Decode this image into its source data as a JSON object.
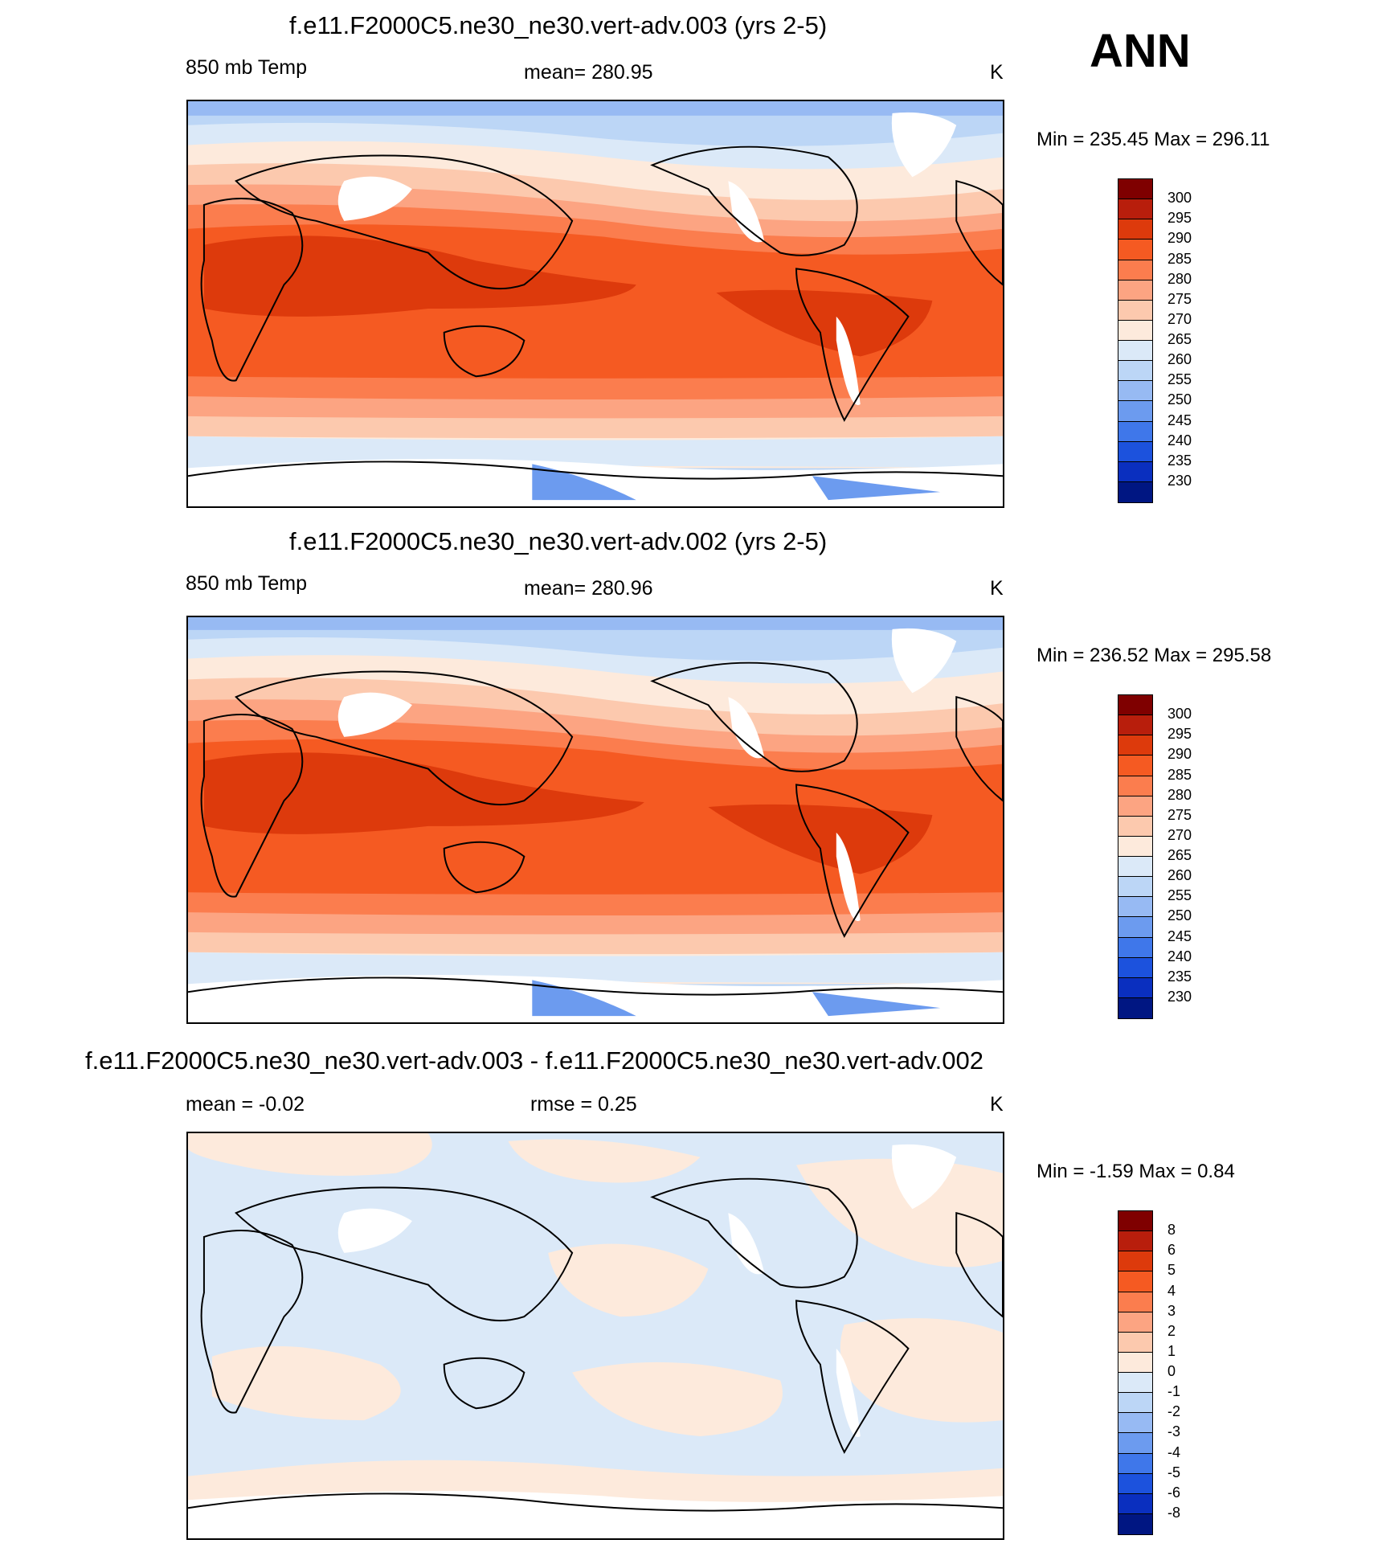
{
  "season": "ANN",
  "panels": [
    {
      "title": "f.e11.F2000C5.ne30_ne30.vert-adv.003 (yrs 2-5)",
      "left_label": "850 mb Temp",
      "center_label": "mean= 280.95",
      "units": "K",
      "minmax": "Min = 235.45 Max = 296.11",
      "colorbar": {
        "labels": [
          "300",
          "295",
          "290",
          "285",
          "280",
          "275",
          "270",
          "265",
          "260",
          "255",
          "250",
          "245",
          "240",
          "235",
          "230"
        ],
        "colors": [
          "#7f0000",
          "#b81e0c",
          "#dd3a0c",
          "#f55a22",
          "#fb7d4e",
          "#fca482",
          "#fcc9ae",
          "#fdeadc",
          "#dbe9f8",
          "#bcd6f6",
          "#97baf3",
          "#6c9bef",
          "#3f77ea",
          "#1c52dd",
          "#0a2fbf",
          "#001682"
        ]
      }
    },
    {
      "title": "f.e11.F2000C5.ne30_ne30.vert-adv.002 (yrs 2-5)",
      "left_label": "850 mb Temp",
      "center_label": "mean= 280.96",
      "units": "K",
      "minmax": "Min = 236.52 Max = 295.58",
      "colorbar": {
        "labels": [
          "300",
          "295",
          "290",
          "285",
          "280",
          "275",
          "270",
          "265",
          "260",
          "255",
          "250",
          "245",
          "240",
          "235",
          "230"
        ],
        "colors": [
          "#7f0000",
          "#b81e0c",
          "#dd3a0c",
          "#f55a22",
          "#fb7d4e",
          "#fca482",
          "#fcc9ae",
          "#fdeadc",
          "#dbe9f8",
          "#bcd6f6",
          "#97baf3",
          "#6c9bef",
          "#3f77ea",
          "#1c52dd",
          "#0a2fbf",
          "#001682"
        ]
      }
    },
    {
      "title": "f.e11.F2000C5.ne30_ne30.vert-adv.003 - f.e11.F2000C5.ne30_ne30.vert-adv.002",
      "left_label": "mean =  -0.02",
      "center_label": "rmse =   0.25",
      "units": "K",
      "minmax": "Min =  -1.59 Max =   0.84",
      "colorbar": {
        "labels": [
          "8",
          "6",
          "5",
          "4",
          "3",
          "2",
          "1",
          "0",
          "-1",
          "-2",
          "-3",
          "-4",
          "-5",
          "-6",
          "-8"
        ],
        "colors": [
          "#7f0000",
          "#b81e0c",
          "#dd3a0c",
          "#f55a22",
          "#fb7d4e",
          "#fca482",
          "#fcc9ae",
          "#fdeadc",
          "#dbe9f8",
          "#bcd6f6",
          "#97baf3",
          "#6c9bef",
          "#3f77ea",
          "#1c52dd",
          "#0a2fbf",
          "#001682"
        ]
      }
    }
  ]
}
